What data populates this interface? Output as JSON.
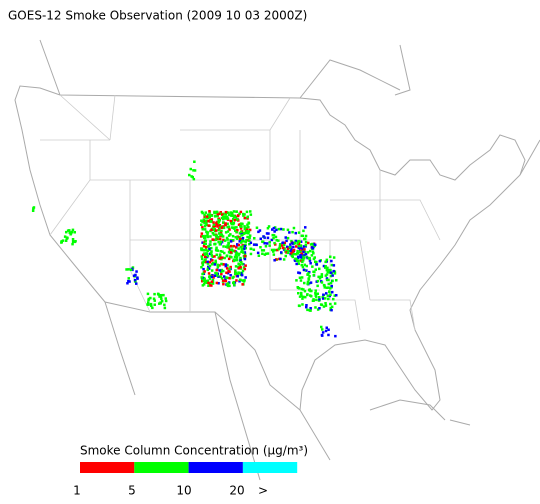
{
  "title": "GOES-12 Smoke Observation (2009 10 03  2000Z)",
  "legend": {
    "title": "Smoke Column Concentration (μg/m³)",
    "colors": [
      "#ff0000",
      "#00ff00",
      "#0000ff",
      "#00ffff"
    ],
    "ticks": [
      "1",
      "5",
      "10",
      "20",
      ">"
    ]
  }
}
